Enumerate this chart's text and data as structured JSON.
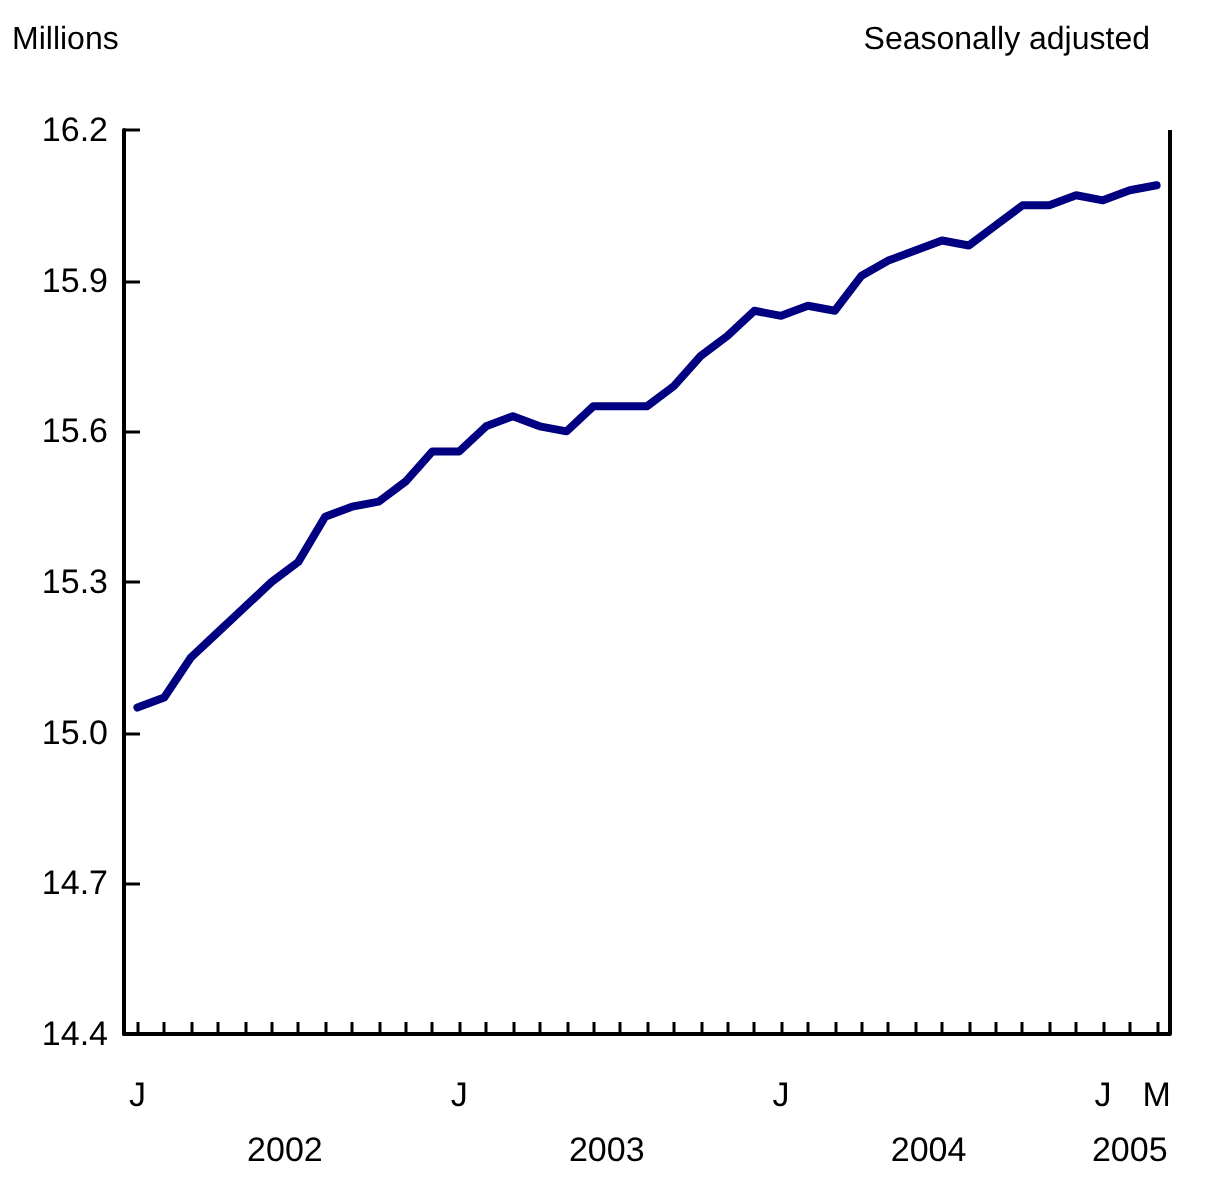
{
  "chart_data": {
    "type": "line",
    "subtitle": "Seasonally adjusted",
    "ylabel": "Millions",
    "categories": [
      "J",
      null,
      null,
      null,
      null,
      null,
      null,
      null,
      null,
      null,
      null,
      null,
      "J",
      null,
      null,
      null,
      null,
      null,
      null,
      null,
      null,
      null,
      null,
      null,
      "J",
      null,
      null,
      null,
      null,
      null,
      null,
      null,
      null,
      null,
      null,
      null,
      "J",
      null,
      "M"
    ],
    "series": [
      {
        "color": "#000080",
        "values": [
          15.05,
          15.07,
          15.15,
          15.2,
          15.25,
          15.3,
          15.34,
          15.43,
          15.45,
          15.46,
          15.5,
          15.56,
          15.56,
          15.61,
          15.63,
          15.61,
          15.6,
          15.65,
          15.65,
          15.65,
          15.69,
          15.75,
          15.79,
          15.84,
          15.83,
          15.85,
          15.84,
          15.91,
          15.94,
          15.96,
          15.98,
          15.97,
          16.01,
          16.05,
          16.05,
          16.07,
          16.06,
          16.08,
          16.09
        ]
      }
    ],
    "annotations": [
      "2002",
      "2003",
      "2004",
      "2005"
    ],
    "ylim": [
      14.4,
      16.2
    ],
    "yticks": [
      {
        "value": 14.4,
        "label": "14.4"
      },
      {
        "value": 14.7,
        "label": "14.7"
      },
      {
        "value": 15.0,
        "label": "15.0"
      },
      {
        "value": 15.3,
        "label": "15.3"
      },
      {
        "value": 15.6,
        "label": "15.6"
      },
      {
        "value": 15.9,
        "label": "15.9"
      },
      {
        "value": 16.2,
        "label": "16.2"
      }
    ],
    "grid": false,
    "marker": "none",
    "line_style": "solid"
  }
}
